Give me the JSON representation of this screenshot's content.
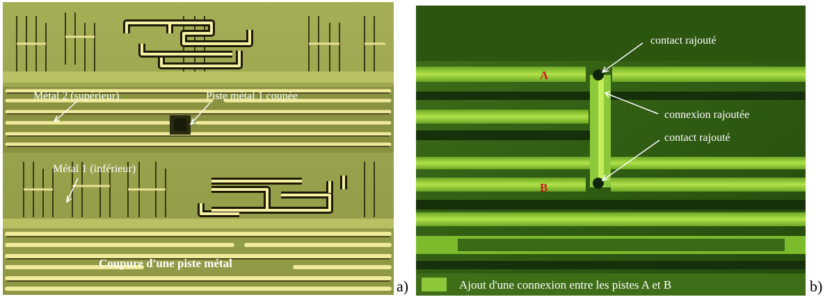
{
  "panel_a": {
    "letter": "a)",
    "label_metal2": "Métal 2 (supérieur)",
    "label_cut": "Piste métal 1 coupée",
    "label_metal1": "Métal 1 (inférieur)",
    "caption": "Coupure d'une piste métal",
    "colors": {
      "background": "#97a04a",
      "metal_highlight": "#f1eb9a",
      "metal_dark": "#2b2a10"
    }
  },
  "panel_b": {
    "letter": "b)",
    "label_contact_top": "contact rajouté",
    "label_connexion": "connexion rajoutée",
    "label_contact_bottom": "contact rajouté",
    "track_a": "A",
    "track_b": "B",
    "caption": "Ajout d'une connexion entre les pistes A et B",
    "colors": {
      "background": "#2f5a12",
      "track": "#9bd43a",
      "letter": "#c81e1e"
    }
  }
}
